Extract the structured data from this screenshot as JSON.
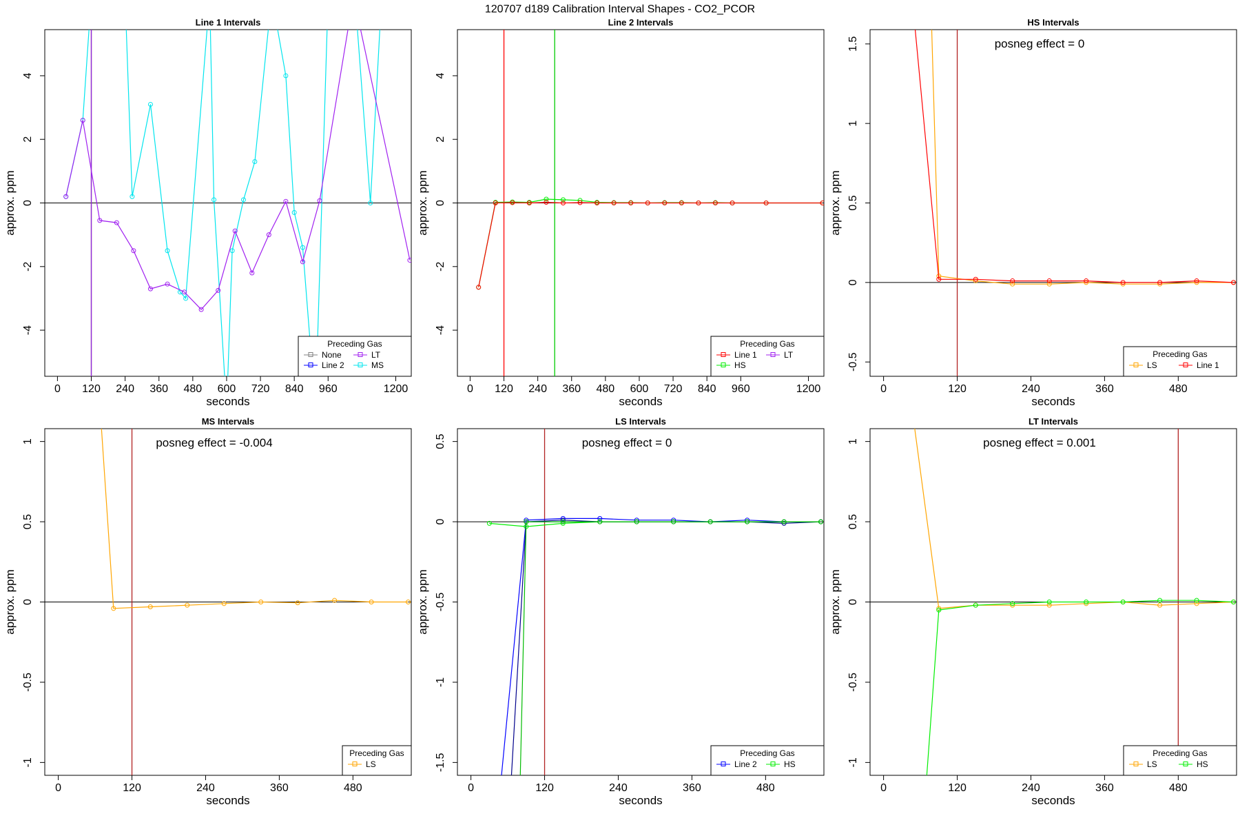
{
  "figure": {
    "title": "120707  d189   Calibration Interval Shapes - CO2_PCOR"
  },
  "chart_data": [
    {
      "type": "line",
      "title": "Line 1 Intervals",
      "xlabel": "seconds",
      "ylabel": "approx. ppm",
      "xlim": [
        -45,
        1255
      ],
      "ylim": [
        -5.45,
        5.45
      ],
      "xticks": [
        0,
        120,
        240,
        360,
        480,
        600,
        720,
        840,
        960,
        1200
      ],
      "yticks": [
        -4,
        -2,
        0,
        2,
        4
      ],
      "vlines": [
        {
          "x": 120,
          "color": "#b22222"
        },
        {
          "x": 120,
          "color": "#8a2be2"
        }
      ],
      "hline": 0,
      "annotation": "",
      "legend": {
        "title": "Preceding Gas",
        "placement": "bottom-right",
        "columns": 2,
        "entries": [
          {
            "name": "None",
            "color": "#808080"
          },
          {
            "name": "LT",
            "color": "#a020f0"
          },
          {
            "name": "Line 2",
            "color": "#0000ff"
          },
          {
            "name": "MS",
            "color": "#00e5ee"
          }
        ]
      },
      "series": [
        {
          "name": "MS",
          "color": "#00e5ee",
          "x": [
            30,
            90,
            120,
            240,
            265,
            330,
            390,
            435,
            455,
            540,
            555,
            600,
            620,
            660,
            700,
            760,
            810,
            840,
            870,
            915,
            960,
            1055,
            1110,
            1150
          ],
          "y": [
            0.2,
            2.6,
            6.5,
            6.5,
            0.2,
            3.1,
            -1.5,
            -2.8,
            -3.0,
            6.5,
            0.1,
            -6.5,
            -1.5,
            0.1,
            1.3,
            6.5,
            4.0,
            -0.3,
            -1.4,
            -6.5,
            6.5,
            6.5,
            0.0,
            6.5
          ]
        },
        {
          "name": "LT",
          "color": "#a020f0",
          "x": [
            30,
            90,
            150,
            210,
            270,
            330,
            390,
            450,
            510,
            570,
            630,
            690,
            750,
            810,
            870,
            930,
            1050,
            1250
          ],
          "y": [
            0.2,
            2.6,
            -0.55,
            -0.62,
            -1.5,
            -2.7,
            -2.55,
            -2.8,
            -3.35,
            -2.75,
            -0.88,
            -2.2,
            -1.0,
            0.05,
            -1.85,
            0.07,
            6.5,
            -1.8
          ]
        }
      ]
    },
    {
      "type": "line",
      "title": "Line 2 Intervals",
      "xlabel": "seconds",
      "ylabel": "approx. ppm",
      "xlim": [
        -45,
        1255
      ],
      "ylim": [
        -5.45,
        5.45
      ],
      "xticks": [
        0,
        120,
        240,
        360,
        480,
        600,
        720,
        840,
        960,
        1200
      ],
      "yticks": [
        -4,
        -2,
        0,
        2,
        4
      ],
      "vlines": [
        {
          "x": 120,
          "color": "#ff0000"
        },
        {
          "x": 300,
          "color": "#00cc00"
        }
      ],
      "hline": 0,
      "annotation": "",
      "legend": {
        "title": "Preceding Gas",
        "placement": "bottom-right",
        "columns": 2,
        "entries": [
          {
            "name": "Line 1",
            "color": "#ff0000"
          },
          {
            "name": "LT",
            "color": "#a020f0"
          },
          {
            "name": "HS",
            "color": "#00ee00"
          }
        ]
      },
      "series": [
        {
          "name": "HS",
          "color": "#00ee00",
          "x": [
            30,
            90,
            150,
            210,
            270,
            330,
            390,
            450,
            510,
            570,
            630,
            690,
            750,
            810,
            870,
            930,
            1050,
            1250
          ],
          "y": [
            -2.65,
            0.02,
            0.03,
            0.02,
            0.12,
            0.1,
            0.08,
            0.02,
            0.01,
            0.01,
            0.0,
            0.01,
            0.01,
            0.0,
            0.01,
            0.0,
            0.0,
            0.0
          ]
        },
        {
          "name": "Line 1",
          "color": "#ff0000",
          "x": [
            30,
            90,
            150,
            210,
            270,
            330,
            390,
            450,
            510,
            570,
            630,
            690,
            750,
            810,
            870,
            930,
            1050,
            1250
          ],
          "y": [
            -2.65,
            0.0,
            0.01,
            0.0,
            0.02,
            0.0,
            0.01,
            0.0,
            0.0,
            0.0,
            0.0,
            0.0,
            0.0,
            0.0,
            0.0,
            0.0,
            0.0,
            0.0
          ]
        }
      ]
    },
    {
      "type": "line",
      "title": "HS Intervals",
      "xlabel": "seconds",
      "ylabel": "approx. ppm",
      "xlim": [
        -22,
        575
      ],
      "ylim": [
        -0.59,
        1.59
      ],
      "xticks": [
        0,
        120,
        240,
        360,
        480
      ],
      "yticks": [
        -0.5,
        0.0,
        0.5,
        1.0,
        1.5
      ],
      "vlines": [
        {
          "x": 120,
          "color": "#b22222"
        }
      ],
      "hline": 0,
      "annotation": "posneg effect = 0",
      "legend": {
        "title": "Preceding Gas",
        "placement": "bottom-right",
        "columns": 2,
        "entries": [
          {
            "name": "LS",
            "color": "#ffa500"
          },
          {
            "name": "Line 1",
            "color": "#ff0000"
          }
        ]
      },
      "series": [
        {
          "name": "LS",
          "color": "#ffa500",
          "x": [
            78,
            90,
            150,
            210,
            270,
            330,
            390,
            450,
            510,
            570
          ],
          "y": [
            1.65,
            0.04,
            0.01,
            -0.01,
            -0.01,
            0.0,
            -0.01,
            -0.01,
            0.0,
            0.0
          ]
        },
        {
          "name": "Line 1",
          "color": "#ff0000",
          "x": [
            50,
            90,
            150,
            210,
            270,
            330,
            390,
            450,
            510,
            570
          ],
          "y": [
            1.65,
            0.02,
            0.02,
            0.01,
            0.01,
            0.01,
            0.0,
            0.0,
            0.01,
            0.0
          ]
        }
      ]
    },
    {
      "type": "line",
      "title": "MS Intervals",
      "xlabel": "seconds",
      "ylabel": "approx. ppm",
      "xlim": [
        -22,
        575
      ],
      "ylim": [
        -1.08,
        1.08
      ],
      "xticks": [
        0,
        120,
        240,
        360,
        480
      ],
      "yticks": [
        -1.0,
        -0.5,
        0.0,
        0.5,
        1.0
      ],
      "vlines": [
        {
          "x": 120,
          "color": "#b22222"
        }
      ],
      "hline": 0,
      "annotation": "posneg effect = -0.004",
      "legend": {
        "title": "Preceding Gas",
        "placement": "bottom-right",
        "columns": 1,
        "entries": [
          {
            "name": "LS",
            "color": "#ffa500"
          }
        ]
      },
      "series": [
        {
          "name": "LS",
          "color": "#ffa500",
          "x": [
            70,
            90,
            150,
            210,
            270,
            330,
            390,
            450,
            510,
            570
          ],
          "y": [
            1.1,
            -0.04,
            -0.03,
            -0.02,
            -0.01,
            0.0,
            -0.005,
            0.01,
            0.0,
            0.0
          ]
        }
      ]
    },
    {
      "type": "line",
      "title": "LS Intervals",
      "xlabel": "seconds",
      "ylabel": "approx. ppm",
      "xlim": [
        -22,
        575
      ],
      "ylim": [
        -1.58,
        0.58
      ],
      "xticks": [
        0,
        120,
        240,
        360,
        480
      ],
      "yticks": [
        -1.5,
        -1.0,
        -0.5,
        0.0,
        0.5
      ],
      "vlines": [
        {
          "x": 120,
          "color": "#b22222"
        }
      ],
      "hline": 0,
      "annotation": "posneg effect = 0",
      "legend": {
        "title": "Preceding Gas",
        "placement": "bottom-right",
        "columns": 2,
        "entries": [
          {
            "name": "Line 2",
            "color": "#0000ff"
          },
          {
            "name": "HS",
            "color": "#00ee00"
          }
        ]
      },
      "series": [
        {
          "name": "Line 2",
          "color": "#0000ff",
          "x": [
            48,
            90,
            150,
            210,
            270,
            330,
            390,
            450,
            510,
            570
          ],
          "y": [
            -1.65,
            0.01,
            0.02,
            0.02,
            0.01,
            0.01,
            0.0,
            0.01,
            0.0,
            0.0
          ]
        },
        {
          "name": "Line 2",
          "color": "#00008b",
          "x": [
            65,
            90,
            150,
            210,
            270,
            330,
            390,
            450,
            510,
            570
          ],
          "y": [
            -1.65,
            0.0,
            0.01,
            0.0,
            0.0,
            0.0,
            0.0,
            0.0,
            -0.01,
            0.0
          ]
        },
        {
          "name": "HS",
          "color": "#00ee00",
          "x": [
            30,
            90,
            150,
            210,
            270,
            330,
            390,
            450,
            510,
            570
          ],
          "y": [
            -0.01,
            -0.03,
            -0.01,
            0.0,
            0.0,
            0.0,
            0.0,
            0.0,
            0.0,
            0.0
          ]
        },
        {
          "name": "HS",
          "color": "#00bb00",
          "x": [
            80,
            90,
            150,
            210,
            270,
            330,
            390,
            450,
            510,
            570
          ],
          "y": [
            -1.65,
            0.0,
            0.0,
            0.0,
            0.0,
            0.0,
            0.0,
            0.0,
            0.0,
            0.0
          ]
        }
      ]
    },
    {
      "type": "line",
      "title": "LT Intervals",
      "xlabel": "seconds",
      "ylabel": "approx. ppm",
      "xlim": [
        -22,
        575
      ],
      "ylim": [
        -1.08,
        1.08
      ],
      "xticks": [
        0,
        120,
        240,
        360,
        480
      ],
      "yticks": [
        -1.0,
        -0.5,
        0.0,
        0.5,
        1.0
      ],
      "vlines": [
        {
          "x": 480,
          "color": "#b22222"
        }
      ],
      "hline": 0,
      "annotation": "posneg effect = 0.001",
      "legend": {
        "title": "Preceding Gas",
        "placement": "bottom-right",
        "columns": 2,
        "entries": [
          {
            "name": "LS",
            "color": "#ffa500"
          },
          {
            "name": "HS",
            "color": "#00ee00"
          }
        ]
      },
      "series": [
        {
          "name": "LS",
          "color": "#ffa500",
          "x": [
            50,
            90,
            150,
            210,
            270,
            330,
            390,
            450,
            510,
            570
          ],
          "y": [
            1.1,
            -0.04,
            -0.02,
            -0.02,
            -0.02,
            -0.01,
            0.0,
            -0.02,
            -0.01,
            0.0
          ]
        },
        {
          "name": "HS",
          "color": "#00ee00",
          "x": [
            70,
            90,
            150,
            210,
            270,
            330,
            390,
            450,
            510,
            570
          ],
          "y": [
            -1.1,
            -0.05,
            -0.02,
            -0.01,
            0.0,
            0.0,
            0.0,
            0.01,
            0.01,
            0.0
          ]
        }
      ]
    }
  ]
}
